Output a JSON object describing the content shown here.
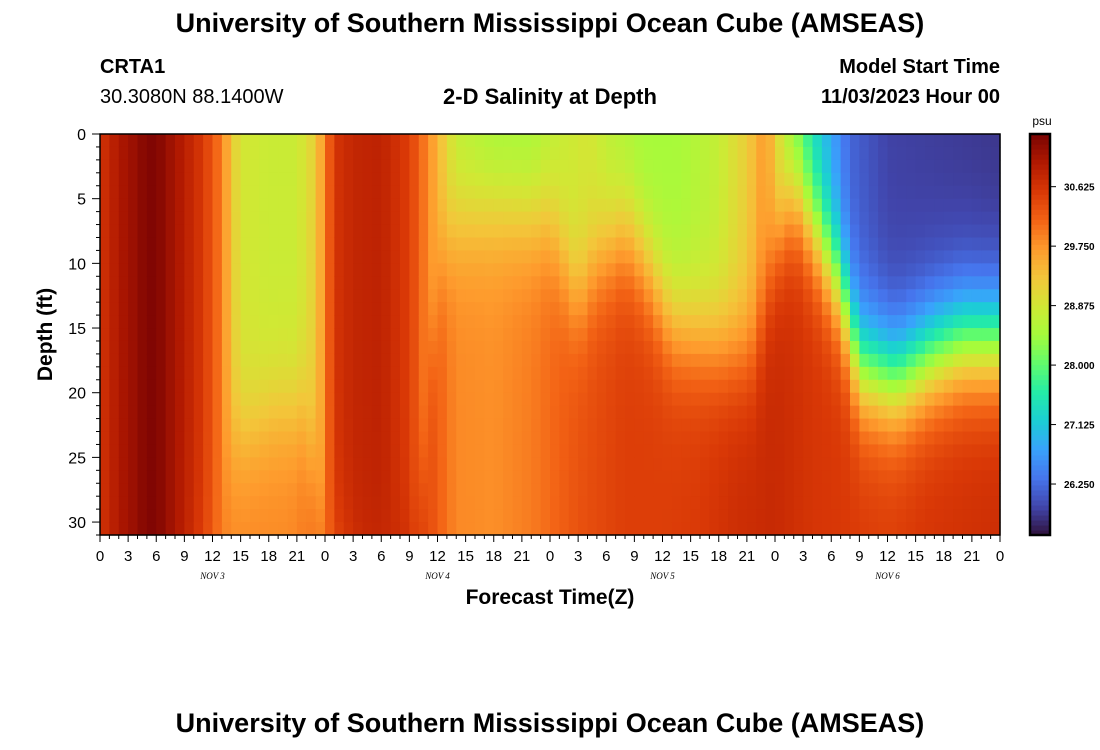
{
  "header": {
    "title": "University of Southern Mississippi Ocean Cube (AMSEAS)",
    "station_id": "CRTA1",
    "station_coords": "30.3080N  88.1400W",
    "subtitle": "2-D Salinity at Depth",
    "model_start_label": "Model Start Time",
    "model_start_value": "11/03/2023 Hour 00"
  },
  "footer": {
    "repeated_title": "University of Southern Mississippi Ocean Cube (AMSEAS)"
  },
  "chart_data": {
    "type": "heatmap",
    "title": "2-D Salinity at Depth",
    "xlabel": "Forecast Time(Z)",
    "ylabel": "Depth (ft)",
    "x_units": "hours from 11/03/2023 00Z",
    "xlim": [
      0,
      96
    ],
    "ylim": [
      0,
      31
    ],
    "y_inverted": true,
    "x_tick_labels": [
      "0",
      "3",
      "6",
      "9",
      "12",
      "15",
      "18",
      "21",
      "0",
      "3",
      "6",
      "9",
      "12",
      "15",
      "18",
      "21",
      "0",
      "3",
      "6",
      "9",
      "12",
      "15",
      "18",
      "21",
      "0",
      "3",
      "6",
      "9",
      "12",
      "15",
      "18",
      "21",
      "0"
    ],
    "day_labels": [
      {
        "hour": 12,
        "label": "NOV 3"
      },
      {
        "hour": 36,
        "label": "NOV 4"
      },
      {
        "hour": 60,
        "label": "NOV 5"
      },
      {
        "hour": 84,
        "label": "NOV 6"
      }
    ],
    "y_ticks": [
      0,
      5,
      10,
      15,
      20,
      25,
      30
    ],
    "colorbar": {
      "units": "psu",
      "min": 25.5,
      "max": 31.4,
      "tick_labels": [
        "30.625",
        "29.750",
        "28.875",
        "28.000",
        "27.125",
        "26.250"
      ],
      "tick_values": [
        30.625,
        29.75,
        28.875,
        28.0,
        27.125,
        26.25
      ],
      "colors": [
        "#30123b",
        "#4145ab",
        "#4675ed",
        "#39a2fc",
        "#1bcfd4",
        "#24eca6",
        "#61fc6c",
        "#a4fc3b",
        "#d1e834",
        "#f3c63a",
        "#fe9b2d",
        "#f36315",
        "#d93806",
        "#b11901",
        "#7a0403"
      ]
    },
    "grid": {
      "x_step_hours": 1,
      "depth_step_ft": 1,
      "surface_profile": [
        [
          0,
          30.6
        ],
        [
          2,
          31.0
        ],
        [
          4,
          31.2
        ],
        [
          5,
          31.35
        ],
        [
          6,
          31.35
        ],
        [
          7,
          31.2
        ],
        [
          9,
          30.9
        ],
        [
          11,
          30.55
        ],
        [
          13,
          29.95
        ],
        [
          14,
          29.3
        ],
        [
          15,
          28.9
        ],
        [
          18,
          28.8
        ],
        [
          21,
          28.8
        ],
        [
          23,
          29.2
        ],
        [
          24,
          29.9
        ],
        [
          25,
          30.6
        ],
        [
          27,
          30.8
        ],
        [
          30,
          30.85
        ],
        [
          33,
          30.5
        ],
        [
          35,
          29.85
        ],
        [
          38,
          28.7
        ],
        [
          42,
          28.45
        ],
        [
          46,
          28.45
        ],
        [
          49,
          28.75
        ],
        [
          52,
          28.9
        ],
        [
          55,
          28.6
        ],
        [
          58,
          28.45
        ],
        [
          62,
          28.5
        ],
        [
          66,
          28.75
        ],
        [
          69,
          29.2
        ],
        [
          71,
          29.75
        ],
        [
          73,
          28.6
        ],
        [
          76,
          27.3
        ],
        [
          80,
          26.2
        ],
        [
          84,
          25.9
        ],
        [
          96,
          25.8
        ]
      ],
      "deep_profile": [
        [
          0,
          30.6
        ],
        [
          2,
          31.0
        ],
        [
          4,
          31.2
        ],
        [
          5,
          31.35
        ],
        [
          6,
          31.35
        ],
        [
          7,
          31.2
        ],
        [
          9,
          30.85
        ],
        [
          11,
          30.4
        ],
        [
          13,
          29.95
        ],
        [
          14,
          29.85
        ],
        [
          20,
          29.85
        ],
        [
          24,
          30.1
        ],
        [
          28,
          30.7
        ],
        [
          33,
          30.75
        ],
        [
          36,
          30.2
        ],
        [
          38,
          29.85
        ],
        [
          42,
          29.8
        ],
        [
          46,
          29.95
        ],
        [
          51,
          30.3
        ],
        [
          56,
          30.5
        ],
        [
          60,
          30.5
        ],
        [
          64,
          30.55
        ],
        [
          68,
          30.7
        ],
        [
          72,
          30.75
        ],
        [
          76,
          30.6
        ],
        [
          84,
          30.5
        ],
        [
          88,
          30.6
        ],
        [
          96,
          30.7
        ]
      ],
      "mixed_layer_depth_ft": [
        [
          0,
          31
        ],
        [
          12,
          31
        ],
        [
          14,
          24
        ],
        [
          19,
          21.5
        ],
        [
          22,
          22
        ],
        [
          24,
          31
        ],
        [
          34,
          31
        ],
        [
          36,
          11
        ],
        [
          38,
          7
        ],
        [
          42,
          6
        ],
        [
          48,
          7
        ],
        [
          51,
          13
        ],
        [
          53,
          10
        ],
        [
          56,
          8
        ],
        [
          58,
          10
        ],
        [
          61,
          15
        ],
        [
          66,
          16.5
        ],
        [
          69,
          17
        ],
        [
          70,
          16.5
        ],
        [
          72,
          9
        ],
        [
          74,
          5
        ],
        [
          76,
          7
        ],
        [
          79,
          12
        ],
        [
          81,
          18
        ],
        [
          85,
          19
        ],
        [
          89,
          17
        ],
        [
          92,
          16
        ],
        [
          96,
          16
        ]
      ],
      "transition_width_ft": 2.6
    }
  }
}
